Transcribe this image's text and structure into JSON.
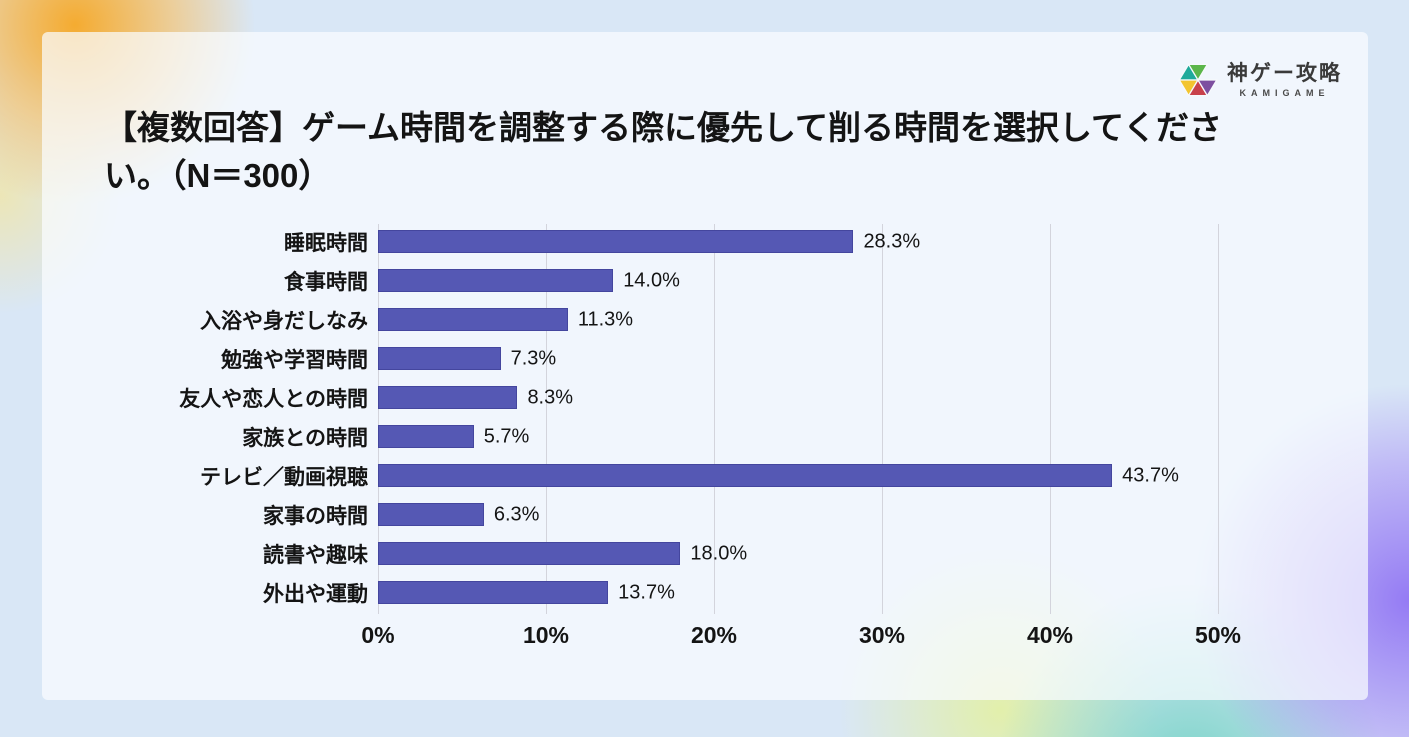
{
  "logo": {
    "name": "神ゲー攻略",
    "subtitle": "KAMIGAME",
    "icon": "kamigame-triangles-icon",
    "icon_colors": [
      "#1faa9b",
      "#5bb64a",
      "#f3c52f",
      "#c8414b",
      "#7d4fa0"
    ]
  },
  "header": {
    "title_line1": "【複数回答】ゲーム時間を調整する際に優先して削る時間を選択してくださ",
    "title_line2": "い。（N＝300）"
  },
  "chart_data": {
    "type": "bar",
    "orientation": "horizontal",
    "title": "【複数回答】ゲーム時間を調整する際に優先して削る時間を選択してください。（N＝300）",
    "categories": [
      "睡眠時間",
      "食事時間",
      "入浴や身だしなみ",
      "勉強や学習時間",
      "友人や恋人との時間",
      "家族との時間",
      "テレビ／動画視聴",
      "家事の時間",
      "読書や趣味",
      "外出や運動"
    ],
    "values": [
      28.3,
      14.0,
      11.3,
      7.3,
      8.3,
      5.7,
      43.7,
      6.3,
      18.0,
      13.7
    ],
    "value_labels": [
      "28.3%",
      "14.0%",
      "11.3%",
      "7.3%",
      "8.3%",
      "5.7%",
      "43.7%",
      "6.3%",
      "18.0%",
      "13.7%"
    ],
    "xlabel": "",
    "ylabel": "",
    "xlim": [
      0,
      50
    ],
    "x_ticks": [
      0,
      10,
      20,
      30,
      40,
      50
    ],
    "x_tick_labels": [
      "0%",
      "10%",
      "20%",
      "30%",
      "40%",
      "50%"
    ],
    "grid": "vertical",
    "legend": null,
    "bar_color": "#5558b4"
  },
  "colors": {
    "background": "#d9e7f6",
    "card": "#f6f9fc",
    "bar": "#5558b4",
    "gridline": "#d3d4dc",
    "text": "#141414",
    "blob_orange": "#f6a826",
    "blob_purple": "#8d6ff4",
    "blob_teal": "#66d0be",
    "blob_yellow_green": "#e3f0a3"
  }
}
